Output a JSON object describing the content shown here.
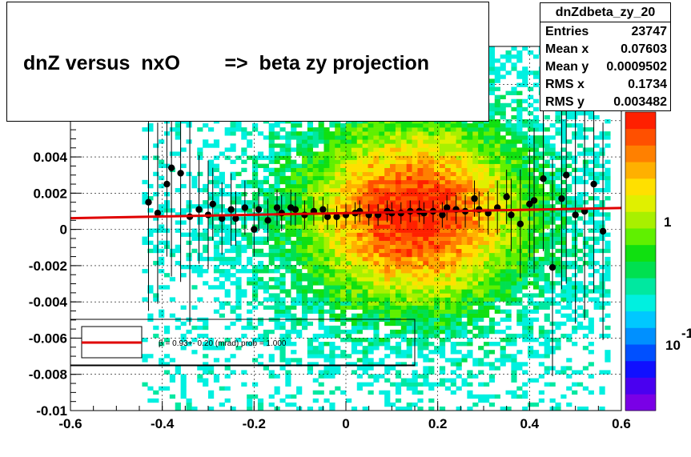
{
  "plot_title": "dnZ versus  nxO        =>  beta zy projection",
  "stats_box": {
    "title": "dnZdbeta_zy_20",
    "rows": [
      {
        "label": "Entries",
        "value": "23747"
      },
      {
        "label": "Mean x",
        "value": "0.07603"
      },
      {
        "label": "Mean y",
        "value": "0.0009502"
      },
      {
        "label": "RMS x",
        "value": "0.1734"
      },
      {
        "label": "RMS y",
        "value": "0.003482"
      }
    ]
  },
  "legend": {
    "fit_text": "β =    0.93+- 0.20 (mrad) prob = 1.000",
    "fit_color": "#e00000"
  },
  "colors": {
    "points": "#000000",
    "fit_line": "#e00000",
    "palette": [
      "#7a00e6",
      "#4a00f0",
      "#1010ff",
      "#0050ff",
      "#0090ff",
      "#00c8ff",
      "#00f0e0",
      "#00e8a0",
      "#00e050",
      "#10e010",
      "#60f000",
      "#a8f000",
      "#e0f000",
      "#ffe000",
      "#ffb000",
      "#ff8000",
      "#ff5000",
      "#ff2000"
    ]
  },
  "chart_data": {
    "type": "scatter",
    "title": "dnZ versus  nxO        =>  beta zy projection",
    "xlabel": "",
    "ylabel": "",
    "xlim": [
      -0.6,
      0.6
    ],
    "ylim": [
      -0.01,
      0.0101
    ],
    "x_ticks": [
      "-0.6",
      "-0.4",
      "-0.2",
      "0",
      "0.2",
      "0.4",
      "0.6"
    ],
    "y_ticks": [
      "-0.01",
      "-0.008",
      "-0.006",
      "-0.004",
      "-0.002",
      "0",
      "0.002",
      "0.004"
    ],
    "colorbar": {
      "scale": "log",
      "labels": [
        {
          "text": "1",
          "value": 1
        },
        {
          "text": "10",
          "value": 10
        },
        {
          "text": "-1",
          "value": 0.1
        }
      ]
    },
    "grid": true,
    "histogram2d": {
      "description_center": [
        0.15,
        0.0008
      ],
      "sigma_x": 0.17,
      "sigma_y": 0.0035
    },
    "profile_points": {
      "x": [
        -0.43,
        -0.41,
        -0.39,
        -0.38,
        -0.36,
        -0.34,
        -0.32,
        -0.3,
        -0.29,
        -0.27,
        -0.25,
        -0.24,
        -0.22,
        -0.2,
        -0.19,
        -0.17,
        -0.15,
        -0.14,
        -0.12,
        -0.11,
        -0.09,
        -0.07,
        -0.05,
        -0.04,
        -0.02,
        0.0,
        0.02,
        0.03,
        0.05,
        0.07,
        0.09,
        0.1,
        0.12,
        0.14,
        0.16,
        0.17,
        0.19,
        0.21,
        0.22,
        0.24,
        0.26,
        0.28,
        0.29,
        0.31,
        0.33,
        0.35,
        0.36,
        0.38,
        0.4,
        0.41,
        0.43,
        0.45,
        0.47,
        0.48,
        0.5,
        0.52,
        0.54,
        0.56
      ],
      "y": [
        0.0015,
        0.0009,
        0.0025,
        0.0034,
        0.0031,
        0.0007,
        0.0011,
        0.0008,
        0.0014,
        0.0006,
        0.0011,
        0.0006,
        0.0012,
        0.0,
        0.0011,
        0.0005,
        0.0012,
        0.0009,
        0.0012,
        0.0011,
        0.0008,
        0.001,
        0.0011,
        0.0007,
        0.0007,
        0.0008,
        0.0009,
        0.001,
        0.0008,
        0.0008,
        0.001,
        0.0009,
        0.0009,
        0.001,
        0.001,
        0.0009,
        0.001,
        0.0008,
        0.0012,
        0.0011,
        0.001,
        0.0017,
        0.0011,
        0.0009,
        0.0012,
        0.0018,
        0.0008,
        0.0003,
        0.0014,
        0.0016,
        0.0028,
        -0.0021,
        0.0017,
        0.003,
        0.0008,
        0.001,
        0.0025,
        -0.0001
      ],
      "yerr": [
        0.006,
        0.005,
        0.004,
        0.006,
        0.006,
        0.006,
        0.003,
        0.003,
        0.002,
        0.002,
        0.002,
        0.0015,
        0.0015,
        0.0015,
        0.0012,
        0.0012,
        0.001,
        0.001,
        0.001,
        0.0009,
        0.0008,
        0.0008,
        0.0007,
        0.0007,
        0.0006,
        0.0006,
        0.0006,
        0.0006,
        0.0006,
        0.0006,
        0.0006,
        0.0006,
        0.0006,
        0.0006,
        0.0006,
        0.0006,
        0.0006,
        0.0007,
        0.0007,
        0.0008,
        0.0009,
        0.001,
        0.001,
        0.0012,
        0.0015,
        0.0015,
        0.002,
        0.003,
        0.003,
        0.004,
        0.004,
        0.006,
        0.005,
        0.006,
        0.006,
        0.006,
        0.006,
        0.006
      ]
    },
    "fit_line": {
      "y_at_xmin": 0.00062,
      "y_at_xmax": 0.00118
    }
  }
}
